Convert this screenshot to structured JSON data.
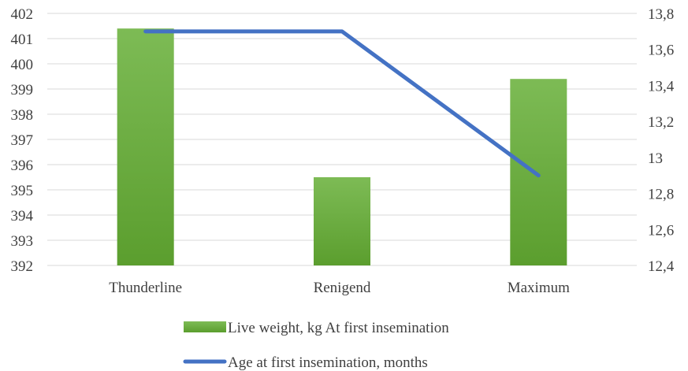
{
  "chart_data": {
    "type": "bar",
    "categories": [
      "Thunderline",
      "Renigend",
      "Maximum"
    ],
    "series": [
      {
        "name": "Live weight, kg At first insemination",
        "type": "bar",
        "axis": "left",
        "values": [
          401.4,
          395.5,
          399.4
        ],
        "color": "#6aaa3a"
      },
      {
        "name": "Age at first insemination, months",
        "type": "line",
        "axis": "right",
        "values": [
          13.7,
          13.7,
          12.9
        ],
        "color": "#4472c4"
      }
    ],
    "title": "",
    "xlabel": "",
    "ylabel": "",
    "y_left": {
      "min": 392,
      "max": 402,
      "ticks": [
        "392",
        "393",
        "394",
        "395",
        "396",
        "397",
        "398",
        "399",
        "400",
        "401",
        "402"
      ]
    },
    "y_right": {
      "min": 12.4,
      "max": 13.8,
      "ticks": [
        "12,4",
        "12,6",
        "12,8",
        "13",
        "13,2",
        "13,4",
        "13,6",
        "13,8"
      ]
    },
    "grid": true,
    "legend_position": "bottom"
  }
}
